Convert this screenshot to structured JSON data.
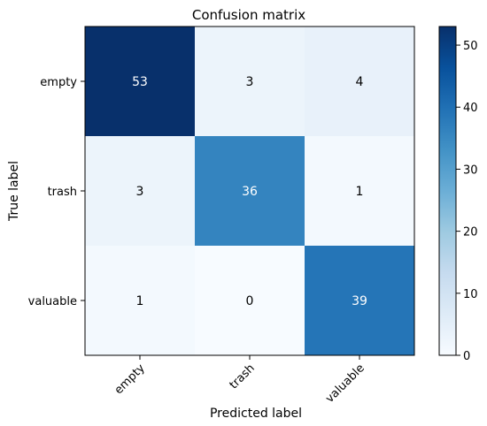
{
  "chart_data": {
    "type": "heatmap",
    "title": "Confusion matrix",
    "xlabel": "Predicted label",
    "ylabel": "True label",
    "x_categories": [
      "empty",
      "trash",
      "valuable"
    ],
    "y_categories": [
      "empty",
      "trash",
      "valuable"
    ],
    "values": [
      [
        53,
        3,
        4
      ],
      [
        3,
        36,
        1
      ],
      [
        1,
        0,
        39
      ]
    ],
    "colorbar": {
      "min": 0,
      "max": 53,
      "ticks": [
        0,
        10,
        20,
        30,
        40,
        50
      ],
      "colormap": "Blues"
    },
    "colors": {
      "low": "#f7fbff",
      "high": "#08306b"
    }
  }
}
